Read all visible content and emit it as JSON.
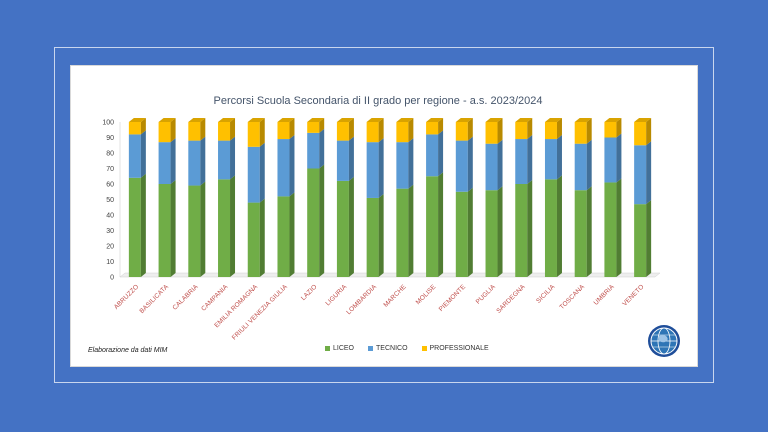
{
  "note": "Elaborazione da dati MIM",
  "chart_data": {
    "type": "bar",
    "stacked": true,
    "title": "Percorsi Scuola Secondaria di II grado per regione - a.s. 2023/2024",
    "ylim": [
      0,
      100
    ],
    "yticks": [
      0,
      10,
      20,
      30,
      40,
      50,
      60,
      70,
      80,
      90,
      100
    ],
    "categories": [
      "ABRUZZO",
      "BASILICATA",
      "CALABRIA",
      "CAMPANIA",
      "EMILIA ROMAGNA",
      "FRIULI VENEZIA GIULIA",
      "LAZIO",
      "LIGURIA",
      "LOMBARDIA",
      "MARCHE",
      "MOLISE",
      "PIEMONTE",
      "PUGLIA",
      "SARDEGNA",
      "SICILIA",
      "TOSCANA",
      "UMBRIA",
      "VENETO"
    ],
    "series": [
      {
        "name": "LICEO",
        "color": "#70ad47",
        "values": [
          64,
          60,
          59,
          63,
          48,
          52,
          70,
          62,
          51,
          57,
          65,
          55,
          56,
          60,
          63,
          56,
          61,
          47
        ]
      },
      {
        "name": "TECNICO",
        "color": "#5b9bd5",
        "values": [
          28,
          27,
          29,
          25,
          36,
          37,
          23,
          26,
          36,
          30,
          27,
          33,
          30,
          29,
          26,
          30,
          29,
          38
        ]
      },
      {
        "name": "PROFESSIONALE",
        "color": "#ffc000",
        "values": [
          8,
          13,
          12,
          12,
          16,
          11,
          7,
          12,
          13,
          13,
          8,
          12,
          14,
          11,
          11,
          14,
          10,
          15
        ]
      }
    ],
    "legend_position": "bottom",
    "grid": false
  }
}
